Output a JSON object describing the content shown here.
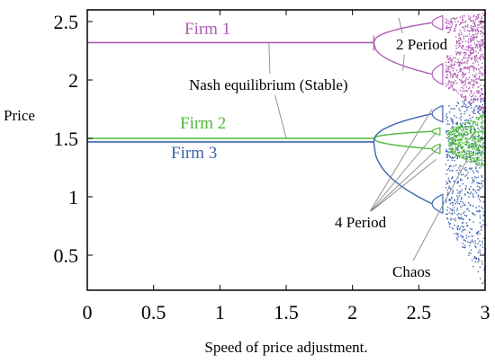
{
  "chart_data": {
    "type": "scatter",
    "title": "",
    "xlabel": "Speed of price adjustment.",
    "ylabel": "Price",
    "xlim": [
      0,
      3
    ],
    "ylim": [
      0.2,
      2.6
    ],
    "xticks": [
      "0",
      "0.5",
      "1",
      "1.5",
      "2",
      "2.5",
      "3"
    ],
    "yticks": [
      "0.5",
      "1",
      "1.5",
      "2",
      "2.5"
    ],
    "grid": false,
    "series": [
      {
        "name": "Firm 1",
        "color": "#b05bb5",
        "equilibrium": 2.32,
        "bifurcation_at": 2.16,
        "period2_start": 2.3,
        "period2_upper_at_2_6": 2.49,
        "period2_lower_at_2_6": 2.05
      },
      {
        "name": "Firm 2",
        "color": "#4dba3a",
        "equilibrium": 1.5,
        "bifurcation_at": 2.16,
        "period2_upper_at_2_6": 1.56,
        "period2_lower_at_2_6": 1.41
      },
      {
        "name": "Firm 3",
        "color": "#3e63b0",
        "equilibrium": 1.47,
        "bifurcation_at": 2.16,
        "period2_upper_at_2_6": 1.71,
        "period2_lower_at_2_6": 0.94
      }
    ],
    "annotations": [
      {
        "text": "Nash equilibrium (Stable)",
        "points": [
          [
            1.37,
            2.32
          ],
          [
            1.5,
            1.5
          ]
        ]
      },
      {
        "text": "2 Period",
        "points": [
          [
            2.28,
            2.59
          ],
          [
            2.28,
            2.07
          ]
        ]
      },
      {
        "text": "4 Period",
        "points": [
          [
            2.6,
            1.75
          ],
          [
            2.63,
            1.55
          ],
          [
            2.67,
            1.44
          ],
          [
            2.63,
            1.32
          ]
        ]
      },
      {
        "text": "Chaos",
        "points": [
          [
            2.87,
            1.33
          ]
        ]
      }
    ]
  }
}
